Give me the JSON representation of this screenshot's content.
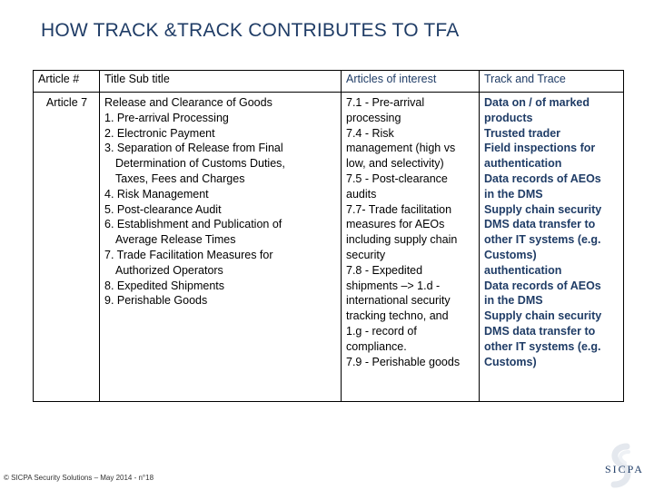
{
  "slide": {
    "title": "HOW TRACK &TRACK CONTRIBUTES TO TFA"
  },
  "table": {
    "headers": [
      "Article #",
      "Title Sub title",
      "Articles of interest",
      "Track and Trace"
    ],
    "row": {
      "article": "Article 7",
      "title_lines": [
        {
          "text": "Release and Clearance of Goods",
          "indent": false
        },
        {
          "text": "1. Pre-arrival Processing",
          "indent": false
        },
        {
          "text": "2. Electronic Payment",
          "indent": false
        },
        {
          "text": "3. Separation of Release from Final",
          "indent": false
        },
        {
          "text": "Determination of Customs Duties,",
          "indent": true
        },
        {
          "text": "Taxes, Fees and Charges",
          "indent": true
        },
        {
          "text": "4. Risk Management",
          "indent": false
        },
        {
          "text": "5. Post-clearance Audit",
          "indent": false
        },
        {
          "text": "6. Establishment and Publication of",
          "indent": false
        },
        {
          "text": "Average Release Times",
          "indent": true
        },
        {
          "text": "7. Trade Facilitation Measures for",
          "indent": false
        },
        {
          "text": "Authorized Operators",
          "indent": true
        },
        {
          "text": "8. Expedited Shipments",
          "indent": false
        },
        {
          "text": "9. Perishable Goods",
          "indent": false
        }
      ],
      "interest_lines": [
        "7.1 - Pre-arrival",
        "processing",
        "7.4 - Risk",
        "management (high vs",
        "low, and selectivity)",
        "7.5 - Post-clearance",
        "audits",
        "7.7- Trade facilitation",
        "measures for AEOs",
        "including supply chain",
        "security",
        "7.8 - Expedited",
        "shipments –> 1.d -",
        "international security",
        "tracking techno, and",
        "1.g - record of",
        "compliance.",
        "7.9 - Perishable goods"
      ],
      "trace_lines": [
        "Data on / of marked",
        "products",
        "Trusted trader",
        "Field inspections for",
        "authentication",
        "Data records of AEOs",
        "in the DMS",
        "Supply chain security",
        "DMS data transfer to",
        "other IT systems (e.g.",
        "Customs)",
        "authentication",
        "Data records of AEOs",
        "in the DMS",
        "Supply chain security",
        "DMS data transfer to",
        "other IT systems (e.g.",
        "Customs)"
      ]
    }
  },
  "footer": {
    "text": "© SICPA Security Solutions – May 2014 - n°18"
  },
  "logo": {
    "text": "SICPA"
  },
  "colors": {
    "title": "#1f3c66",
    "accent": "#1f3c66"
  }
}
